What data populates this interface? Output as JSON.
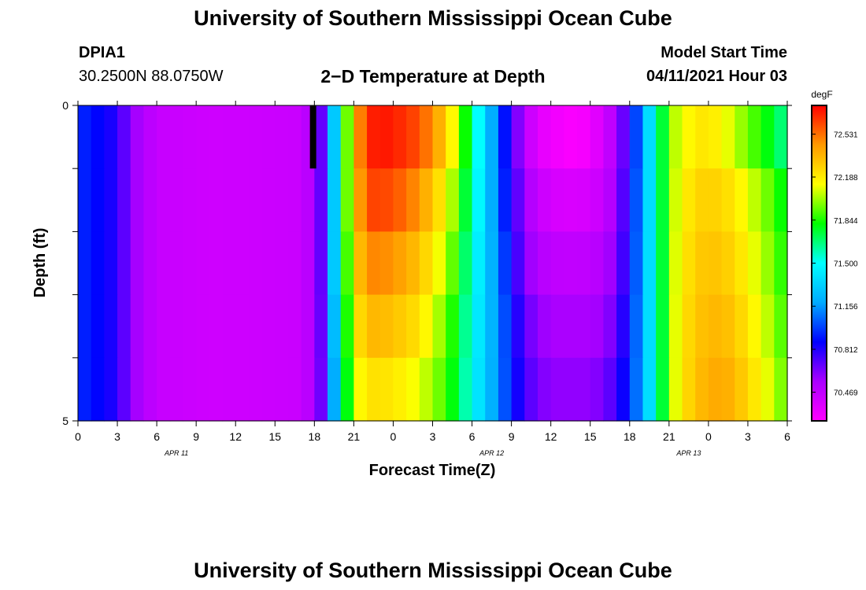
{
  "page": {
    "title_top": "University of Southern Mississippi Ocean Cube",
    "title_bottom": "University of Southern Mississippi Ocean Cube",
    "station_id": "DPIA1",
    "station_coords": "30.2500N  88.0750W",
    "plot_title": "2−D Temperature at Depth",
    "model_start_label": "Model Start Time",
    "model_start_value": "04/11/2021 Hour 03"
  },
  "chart_data": {
    "type": "heatmap",
    "title": "2−D Temperature at Depth",
    "xlabel": "Forecast Time(Z)",
    "ylabel": "Depth (ft)",
    "x_ticks": [
      "0",
      "3",
      "6",
      "9",
      "12",
      "15",
      "18",
      "21",
      "0",
      "3",
      "6",
      "9",
      "12",
      "15",
      "18",
      "21",
      "0",
      "3",
      "6"
    ],
    "x_date_labels": [
      {
        "label": "APR 11",
        "tick_index": 2.5
      },
      {
        "label": "APR 12",
        "tick_index": 10.5
      },
      {
        "label": "APR 13",
        "tick_index": 15.5
      }
    ],
    "x_range_hours": [
      0,
      54
    ],
    "y_ticks": [
      "0",
      "5"
    ],
    "y_range": [
      0,
      5
    ],
    "colorbar": {
      "unit": "degF",
      "ticks": [
        "72.531",
        "72.188",
        "71.844",
        "71.500",
        "71.156",
        "70.812",
        "70.469"
      ],
      "vmin": 70.24,
      "vmax": 72.76,
      "colors": [
        "#ff00ff",
        "#aa00ff",
        "#0000ff",
        "#00aaff",
        "#00ffff",
        "#00ff00",
        "#ffff00",
        "#ff9900",
        "#ff0000"
      ]
    },
    "depth_layers": [
      0,
      1,
      2,
      3,
      4,
      5
    ],
    "time_keypoints_hours": [
      0,
      1,
      3,
      4,
      6,
      10,
      17,
      18,
      19,
      19.5,
      20,
      20.5,
      21,
      21.5,
      22,
      22.5,
      23,
      24,
      26,
      28,
      29,
      30,
      31,
      32,
      33,
      34,
      35,
      36,
      37,
      38,
      39,
      40,
      41,
      42,
      43,
      44,
      44.5,
      45,
      46,
      47,
      48,
      49,
      50,
      51,
      52,
      53,
      54
    ],
    "temperature_degF": [
      [
        70.95,
        70.9,
        70.8,
        70.6,
        70.45,
        70.42,
        70.44,
        70.55,
        70.82,
        71.3,
        71.6,
        71.95,
        72.25,
        72.5,
        72.65,
        72.7,
        72.72,
        72.7,
        72.6,
        72.3,
        72.0,
        71.65,
        71.35,
        71.05,
        70.75,
        70.5,
        70.35,
        70.3,
        70.27,
        70.25,
        70.3,
        70.4,
        70.55,
        70.8,
        71.2,
        71.55,
        71.75,
        72.0,
        72.1,
        72.2,
        72.2,
        72.15,
        72.05,
        71.95,
        71.85,
        71.75,
        71.6
      ],
      [
        70.95,
        70.9,
        70.8,
        70.6,
        70.45,
        70.42,
        70.44,
        70.55,
        70.82,
        71.3,
        71.6,
        71.95,
        72.25,
        72.45,
        72.58,
        72.62,
        72.62,
        72.6,
        72.45,
        72.15,
        71.9,
        71.6,
        71.35,
        71.05,
        70.8,
        70.58,
        70.45,
        70.4,
        70.38,
        70.38,
        70.4,
        70.45,
        70.58,
        70.85,
        71.2,
        71.55,
        71.75,
        72.0,
        72.15,
        72.25,
        72.28,
        72.25,
        72.2,
        72.1,
        72.0,
        71.9,
        71.75
      ],
      [
        70.95,
        70.9,
        70.8,
        70.6,
        70.45,
        70.42,
        70.44,
        70.55,
        70.82,
        71.3,
        71.6,
        71.9,
        72.15,
        72.35,
        72.45,
        72.48,
        72.48,
        72.45,
        72.32,
        72.05,
        71.82,
        71.55,
        71.33,
        71.1,
        70.85,
        70.62,
        70.52,
        70.48,
        70.47,
        70.47,
        70.48,
        70.52,
        70.62,
        70.88,
        71.2,
        71.55,
        71.75,
        72.0,
        72.18,
        72.28,
        72.32,
        72.3,
        72.25,
        72.15,
        72.05,
        71.95,
        71.8
      ],
      [
        70.95,
        70.9,
        70.8,
        70.6,
        70.45,
        70.42,
        70.44,
        70.55,
        70.8,
        71.25,
        71.55,
        71.85,
        72.1,
        72.25,
        72.32,
        72.35,
        72.35,
        72.32,
        72.22,
        71.95,
        71.75,
        71.52,
        71.32,
        71.12,
        70.9,
        70.7,
        70.6,
        70.55,
        70.55,
        70.55,
        70.55,
        70.58,
        70.68,
        70.92,
        71.2,
        71.55,
        71.75,
        72.0,
        72.2,
        72.3,
        72.35,
        72.35,
        72.3,
        72.2,
        72.1,
        72.0,
        71.85
      ],
      [
        70.95,
        70.9,
        70.8,
        70.6,
        70.45,
        70.42,
        70.44,
        70.55,
        70.78,
        71.2,
        71.5,
        71.8,
        72.0,
        72.15,
        72.2,
        72.22,
        72.22,
        72.2,
        72.1,
        71.9,
        71.7,
        71.5,
        71.3,
        71.12,
        70.92,
        70.75,
        70.65,
        70.6,
        70.6,
        70.6,
        70.6,
        70.65,
        70.75,
        70.95,
        71.2,
        71.55,
        71.75,
        72.0,
        72.2,
        72.32,
        72.38,
        72.4,
        72.35,
        72.25,
        72.15,
        72.05,
        71.9
      ]
    ],
    "no_data": [
      {
        "hour": 17.9,
        "depth_top": 0,
        "depth_bottom": 1
      }
    ],
    "grid": false,
    "legend": "right"
  }
}
